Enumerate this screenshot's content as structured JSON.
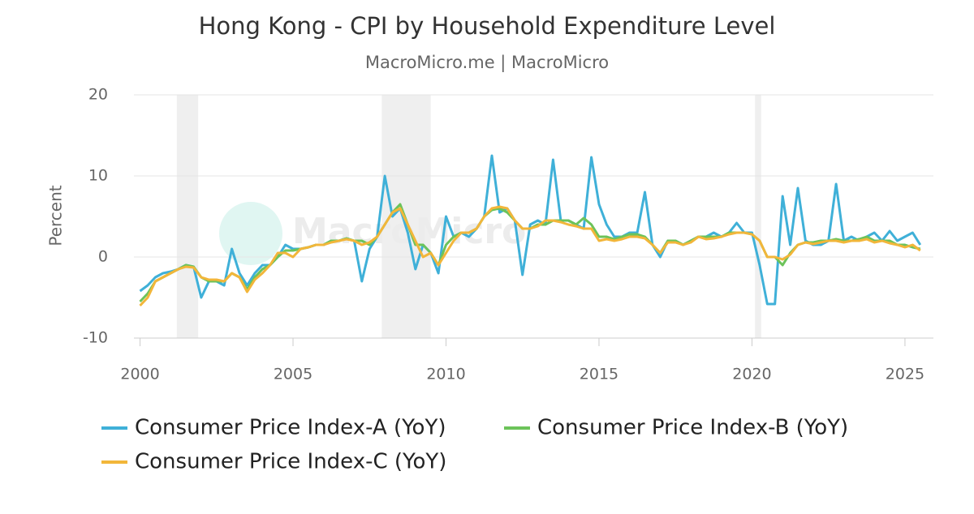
{
  "chart_data": {
    "type": "line",
    "title": "Hong Kong - CPI by Household Expenditure Level",
    "subtitle": "MacroMicro.me | MacroMicro",
    "watermark": "MacroMicro",
    "y_label": "Percent",
    "xlim": [
      1999.8,
      2025.93
    ],
    "ylim": [
      -10,
      20
    ],
    "xticks": [
      2000,
      2005,
      2010,
      2015,
      2020,
      2025
    ],
    "yticks": [
      -10,
      0,
      10,
      20
    ],
    "grid": true,
    "legend": "bottom",
    "shaded_periods": [
      [
        2001.2,
        2001.9
      ],
      [
        2007.9,
        2009.5
      ],
      [
        2020.1,
        2020.3
      ]
    ],
    "x": [
      2000,
      2000.25,
      2000.5,
      2000.75,
      2001,
      2001.25,
      2001.5,
      2001.75,
      2002,
      2002.25,
      2002.5,
      2002.75,
      2003,
      2003.25,
      2003.5,
      2003.75,
      2004,
      2004.25,
      2004.5,
      2004.75,
      2005,
      2005.25,
      2005.5,
      2005.75,
      2006,
      2006.25,
      2006.5,
      2006.75,
      2007,
      2007.25,
      2007.5,
      2007.75,
      2008,
      2008.25,
      2008.5,
      2008.75,
      2009,
      2009.25,
      2009.5,
      2009.75,
      2010,
      2010.25,
      2010.5,
      2010.75,
      2011,
      2011.25,
      2011.5,
      2011.75,
      2012,
      2012.25,
      2012.5,
      2012.75,
      2013,
      2013.25,
      2013.5,
      2013.75,
      2014,
      2014.25,
      2014.5,
      2014.75,
      2015,
      2015.25,
      2015.5,
      2015.75,
      2016,
      2016.25,
      2016.5,
      2016.75,
      2017,
      2017.25,
      2017.5,
      2017.75,
      2018,
      2018.25,
      2018.5,
      2018.75,
      2019,
      2019.25,
      2019.5,
      2019.75,
      2020,
      2020.25,
      2020.5,
      2020.75,
      2021,
      2021.25,
      2021.5,
      2021.75,
      2022,
      2022.25,
      2022.5,
      2022.75,
      2023,
      2023.25,
      2023.5,
      2023.75,
      2024,
      2024.25,
      2024.5,
      2024.75,
      2025,
      2025.25,
      2025.5
    ],
    "series": [
      {
        "name": "Consumer Price Index-A (YoY)",
        "color": "#3fb0d8",
        "values": [
          -4.2,
          -3.5,
          -2.5,
          -2,
          -1.8,
          -1.5,
          -1,
          -1.2,
          -5,
          -3,
          -3,
          -3.5,
          1,
          -2,
          -3.5,
          -2,
          -1,
          -1,
          0,
          1.5,
          1,
          1,
          1.2,
          1.5,
          1.5,
          2,
          2,
          2.3,
          2,
          -3,
          1,
          2.5,
          10,
          5,
          6,
          3,
          -1.5,
          1.5,
          0.5,
          -2,
          5,
          2.5,
          3,
          2.5,
          3.5,
          5,
          12.5,
          5.5,
          6,
          4.5,
          -2.2,
          4,
          4.5,
          4,
          12,
          4.5,
          4.5,
          4,
          3.5,
          12.3,
          6.5,
          4,
          2.5,
          2.5,
          3,
          3,
          8,
          1.5,
          0,
          2,
          2,
          1.5,
          2,
          2.5,
          2.5,
          3,
          2.5,
          3,
          4.2,
          3,
          3,
          -1,
          -5.8,
          -5.8,
          7.5,
          1.5,
          8.5,
          2,
          1.5,
          1.5,
          2,
          9,
          2,
          2.5,
          2,
          2.5,
          3,
          2,
          3.2,
          2,
          2.5,
          3,
          1.5
        ]
      },
      {
        "name": "Consumer Price Index-B (YoY)",
        "color": "#6cc35a",
        "values": [
          -5.5,
          -4.5,
          -3,
          -2.5,
          -2,
          -1.5,
          -1,
          -1.2,
          -2.5,
          -3,
          -3,
          -3,
          -2,
          -2.5,
          -4,
          -2.5,
          -1.5,
          -1,
          0,
          0.8,
          0.8,
          1,
          1.2,
          1.5,
          1.5,
          2,
          2,
          2.3,
          2,
          2,
          1.5,
          2.5,
          4,
          5.5,
          6.5,
          4,
          1.5,
          1.5,
          0.5,
          -1,
          1.5,
          2.5,
          3,
          3,
          3.5,
          5,
          5.8,
          6,
          5.5,
          4.5,
          3.5,
          3.5,
          4,
          4,
          4.5,
          4.5,
          4.5,
          4,
          4.8,
          4,
          2.5,
          2.5,
          2.2,
          2.5,
          2.8,
          2.8,
          2.5,
          1.5,
          0.5,
          2,
          2,
          1.5,
          2,
          2.5,
          2.5,
          2.5,
          2.5,
          3,
          3,
          3,
          2.8,
          2,
          0,
          0,
          -1,
          0.5,
          1.5,
          1.8,
          1.8,
          2,
          2,
          2.2,
          2,
          2,
          2.2,
          2.5,
          2,
          2,
          2,
          1.5,
          1.5,
          1.2,
          1
        ]
      },
      {
        "name": "Consumer Price Index-C (YoY)",
        "color": "#f2b63a",
        "values": [
          -6,
          -5,
          -3,
          -2.5,
          -2,
          -1.5,
          -1.2,
          -1.3,
          -2.5,
          -2.8,
          -2.8,
          -3,
          -2,
          -2.5,
          -4.3,
          -2.8,
          -2,
          -1,
          0.5,
          0.5,
          0,
          1,
          1.2,
          1.5,
          1.5,
          1.8,
          2,
          2.2,
          2,
          1.5,
          1.8,
          2.5,
          4,
          5.5,
          6,
          4,
          2,
          0,
          0.5,
          -1,
          0.5,
          2,
          3,
          3,
          3.5,
          5,
          6,
          6.2,
          6,
          4.5,
          3.5,
          3.5,
          3.8,
          4.5,
          4.5,
          4.3,
          4,
          3.8,
          3.5,
          3.5,
          2,
          2.2,
          2,
          2.2,
          2.5,
          2.5,
          2.3,
          1.5,
          0.5,
          1.8,
          1.8,
          1.5,
          1.8,
          2.5,
          2.2,
          2.3,
          2.5,
          2.8,
          3,
          3,
          2.8,
          2,
          0,
          0,
          -0.3,
          0.3,
          1.5,
          1.8,
          1.6,
          1.8,
          2,
          2,
          1.8,
          2,
          2,
          2.2,
          1.8,
          2,
          1.7,
          1.5,
          1.2,
          1.5,
          0.8
        ]
      }
    ]
  }
}
